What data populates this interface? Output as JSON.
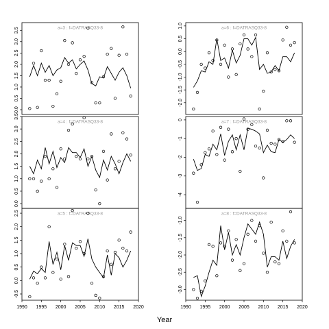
{
  "x_axis_label": "Year",
  "chart_data": [
    {
      "type": "line",
      "title": "a=3 : f=DATRASQ33-8",
      "x": [
        1992,
        1993,
        1994,
        1995,
        1996,
        1997,
        1998,
        1999,
        2000,
        2001,
        2002,
        2003,
        2004,
        2005,
        2006,
        2007,
        2008,
        2009,
        2010,
        2011,
        2012,
        2013,
        2014,
        2015,
        2016,
        2017,
        2018
      ],
      "series": [
        {
          "style": "points",
          "color": "#000000",
          "values": [
            0.05,
            2.05,
            0.1,
            2.6,
            1.3,
            1.3,
            0.15,
            0.7,
            1.25,
            3.05,
            2.0,
            2.95,
            1.6,
            2.2,
            2.35,
            3.6,
            1.2,
            0.3,
            0.3,
            1.45,
            2.45,
            2.7,
            0.5,
            2.4,
            3.65,
            2.45,
            0.6
          ]
        },
        {
          "style": "line",
          "color": "#000000",
          "values": [
            1.45,
            1.95,
            1.5,
            2.05,
            1.65,
            1.95,
            1.5,
            1.75,
            1.85,
            2.3,
            2.05,
            2.2,
            1.8,
            2.0,
            2.15,
            1.75,
            1.15,
            1.05,
            1.45,
            1.4,
            1.9,
            1.6,
            1.3,
            1.65,
            1.85,
            1.5,
            0.95
          ]
        }
      ],
      "xlim": [
        1990,
        2020
      ],
      "ylim": [
        -0.21,
        3.84
      ],
      "yticks": [
        {
          "value": 0,
          "label": "0.0"
        },
        0.5,
        {
          "value": 1,
          "label": "1.0"
        },
        1.5,
        {
          "value": 2,
          "label": "2.0"
        },
        2.5,
        {
          "value": 3,
          "label": "3.0"
        },
        3.5
      ]
    },
    {
      "type": "line",
      "title": "a=4 : f=DATRASQ33-8",
      "x": [
        1992,
        1993,
        1994,
        1995,
        1996,
        1997,
        1998,
        1999,
        2000,
        2001,
        2002,
        2003,
        2004,
        2005,
        2006,
        2007,
        2008,
        2009,
        2010,
        2011,
        2012,
        2013,
        2014,
        2015,
        2016,
        2017,
        2018
      ],
      "series": [
        {
          "style": "points",
          "color": "#000000",
          "values": [
            1.0,
            1.0,
            0.5,
            0.9,
            1.9,
            1.0,
            1.4,
            0.65,
            2.2,
            1.8,
            2.95,
            3.2,
            1.9,
            1.8,
            3.45,
            1.8,
            1.9,
            0.55,
            0.0,
            2.1,
            0.95,
            2.8,
            1.4,
            1.7,
            2.85,
            2.6,
            1.95
          ]
        },
        {
          "style": "line",
          "color": "#000000",
          "values": [
            1.5,
            1.2,
            1.75,
            1.4,
            2.25,
            1.6,
            2.1,
            1.45,
            1.85,
            1.65,
            2.25,
            2.05,
            2.05,
            1.85,
            2.2,
            1.5,
            1.9,
            1.35,
            1.05,
            1.75,
            1.35,
            1.9,
            1.6,
            1.2,
            1.65,
            2.0,
            1.7
          ]
        }
      ],
      "xlim": [
        1990,
        2020
      ],
      "ylim": [
        -0.19,
        3.5
      ],
      "yticks": [
        {
          "value": 0,
          "label": "0.0"
        },
        0.5,
        {
          "value": 1,
          "label": "1.0"
        },
        1.5,
        {
          "value": 2,
          "label": "2.0"
        },
        2.5,
        {
          "value": 3,
          "label": "3.0"
        },
        3.5
      ]
    },
    {
      "type": "line",
      "title": "a=5 : f=DATRASQ33-8",
      "x": [
        1992,
        1993,
        1994,
        1995,
        1996,
        1997,
        1998,
        1999,
        2000,
        2001,
        2002,
        2003,
        2004,
        2005,
        2006,
        2007,
        2008,
        2009,
        2010,
        2011,
        2012,
        2013,
        2014,
        2015,
        2016,
        2017,
        2018
      ],
      "series": [
        {
          "style": "points",
          "color": "#000000",
          "values": [
            -0.6,
            0.1,
            -0.1,
            0.5,
            0.1,
            2.0,
            0.3,
            0.8,
            0.05,
            1.35,
            0.15,
            2.6,
            1.2,
            1.45,
            1.0,
            2.5,
            -0.1,
            -0.55,
            -0.65,
            0.15,
            1.1,
            0.6,
            1.05,
            1.5,
            1.2,
            1.1,
            1.8
          ]
        },
        {
          "style": "line",
          "color": "#000000",
          "values": [
            0.05,
            0.35,
            0.25,
            0.45,
            0.3,
            1.45,
            0.6,
            1.05,
            0.4,
            1.3,
            0.75,
            1.4,
            1.3,
            1.3,
            0.9,
            1.55,
            0.8,
            0.5,
            0.3,
            0.1,
            0.95,
            0.2,
            1.0,
            0.85,
            0.5,
            0.75,
            1.1
          ]
        }
      ],
      "xlim": [
        1990,
        2020
      ],
      "ylim": [
        -0.73,
        2.68
      ],
      "yticks": [
        -0.5,
        {
          "value": 0,
          "label": "0.0"
        },
        0.5,
        {
          "value": 1,
          "label": "1.0"
        },
        1.5,
        {
          "value": 2,
          "label": "2.0"
        },
        2.5
      ],
      "xticks": [
        1990,
        1995,
        2000,
        2005,
        2010,
        2015,
        2020
      ]
    },
    {
      "type": "line",
      "title": "a=6 : f=DATRASQ33-8",
      "x": [
        1992,
        1993,
        1994,
        1995,
        1996,
        1997,
        1998,
        1999,
        2000,
        2001,
        2002,
        2003,
        2004,
        2005,
        2006,
        2007,
        2008,
        2009,
        2010,
        2011,
        2012,
        2013,
        2014,
        2015,
        2016,
        2017,
        2018
      ],
      "series": [
        {
          "style": "points",
          "color": "#000000",
          "values": [
            -2.25,
            -1.6,
            -0.5,
            -0.65,
            -0.05,
            -0.35,
            0.45,
            -0.5,
            0.25,
            -1.0,
            0.1,
            -0.9,
            0.3,
            0.65,
            0.1,
            -0.2,
            0.65,
            -2.25,
            -1.55,
            -0.05,
            -0.8,
            -0.7,
            -0.75,
            0.45,
            0.95,
            0.25,
            0.35
          ]
        },
        {
          "style": "line",
          "color": "#000000",
          "values": [
            -1.4,
            -1.15,
            -0.75,
            -0.8,
            -0.4,
            -0.5,
            0.5,
            -0.35,
            -0.25,
            -0.65,
            0.05,
            -0.45,
            -0.15,
            0.5,
            0.5,
            0.25,
            0.55,
            -0.7,
            -0.5,
            -0.85,
            -0.8,
            -0.55,
            -0.75,
            -0.2,
            -0.2,
            -0.4,
            -0.05
          ]
        }
      ],
      "xlim": [
        1990,
        2020
      ],
      "ylim": [
        -2.46,
        1.13
      ],
      "yticks": [
        {
          "value": -2,
          "label": "-2.0"
        },
        -1.5,
        {
          "value": -1,
          "label": "-1.0"
        },
        -0.5,
        {
          "value": 0,
          "label": "0.0"
        },
        0.5,
        {
          "value": 1,
          "label": "1.0"
        }
      ]
    },
    {
      "type": "line",
      "title": "a=7 : f=DATRASQ33-8",
      "x": [
        1992,
        1993,
        1994,
        1995,
        1996,
        1997,
        1998,
        1999,
        2000,
        2001,
        2002,
        2003,
        2004,
        2005,
        2006,
        2007,
        2008,
        2009,
        2010,
        2011,
        2012,
        2013,
        2014,
        2015,
        2016,
        2017,
        2018
      ],
      "series": [
        {
          "style": "points",
          "color": "#000000",
          "values": [
            -2.85,
            -4.4,
            -2.4,
            -1.75,
            -1.55,
            -0.6,
            -1.85,
            -0.4,
            -2.15,
            -0.5,
            -1.7,
            -1.0,
            -2.75,
            0.05,
            -0.5,
            -0.25,
            -1.4,
            -1.5,
            -3.1,
            -0.55,
            -1.25,
            -1.3,
            -1.05,
            -1.15,
            -0.05,
            -0.05,
            -1.2
          ]
        },
        {
          "style": "line",
          "color": "#000000",
          "values": [
            -2.1,
            -2.7,
            -2.6,
            -1.85,
            -1.95,
            -1.3,
            -1.6,
            -0.75,
            -1.9,
            -1.15,
            -0.8,
            -1.6,
            -0.8,
            -1.6,
            -0.45,
            -0.5,
            -0.6,
            -0.75,
            -1.75,
            -1.35,
            -1.7,
            -1.75,
            -1.05,
            -1.2,
            -1.05,
            -0.8,
            -1.0
          ]
        }
      ],
      "xlim": [
        1990,
        2020
      ],
      "ylim": [
        -4.73,
        0.18
      ],
      "yticks": [
        -4,
        -3,
        -2,
        -1,
        0
      ]
    },
    {
      "type": "line",
      "title": "a=8 : f=DATRASQ33-8",
      "x": [
        1992,
        1993,
        1994,
        1995,
        1996,
        1997,
        1998,
        1999,
        2000,
        2001,
        2002,
        2003,
        2004,
        2005,
        2006,
        2007,
        2008,
        2009,
        2010,
        2011,
        2012,
        2013,
        2014,
        2015,
        2016,
        2017,
        2018
      ],
      "series": [
        {
          "style": "points",
          "color": "#000000",
          "values": [
            -3.0,
            -3.25,
            -3.05,
            -2.75,
            -1.7,
            -1.75,
            -2.6,
            -1.65,
            -1.75,
            -1.3,
            -2.15,
            -1.55,
            -2.45,
            -2.25,
            -1.4,
            -1.0,
            -1.6,
            -1.15,
            -1.95,
            -2.5,
            -1.05,
            -2.2,
            -2.25,
            -1.3,
            -1.6,
            -0.75,
            -1.65
          ]
        },
        {
          "style": "line",
          "color": "#000000",
          "values": [
            -2.65,
            -2.6,
            -3.2,
            -2.9,
            -2.5,
            -2.15,
            -2.3,
            -1.15,
            -1.85,
            -1.35,
            -2.0,
            -1.7,
            -2.0,
            -1.5,
            -1.1,
            -1.25,
            -1.4,
            -1.05,
            -1.4,
            -2.35,
            -2.05,
            -2.05,
            -2.15,
            -1.6,
            -2.1,
            -1.75,
            -1.55
          ]
        }
      ],
      "xlim": [
        1990,
        2020
      ],
      "ylim": [
        -3.31,
        -0.65
      ],
      "yticks": [
        {
          "value": -3,
          "label": "-3.0"
        },
        -2.5,
        {
          "value": -2,
          "label": "-2.0"
        },
        -1.5,
        {
          "value": -1,
          "label": "-1.0"
        }
      ],
      "xticks": [
        1990,
        1995,
        2000,
        2005,
        2010,
        2015,
        2020
      ]
    }
  ]
}
